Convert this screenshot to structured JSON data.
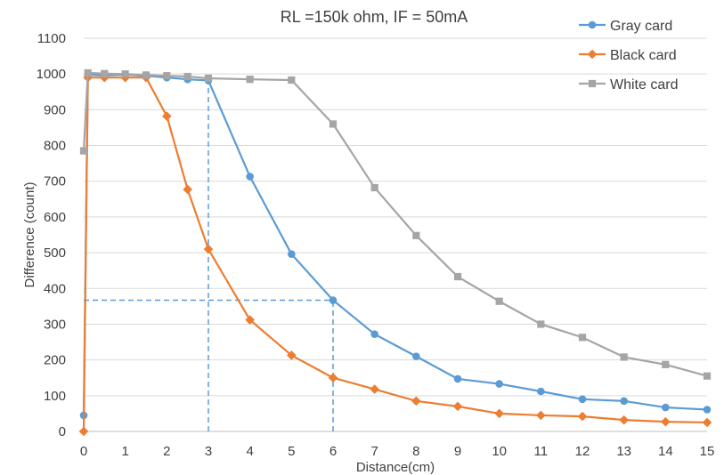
{
  "chart_data": {
    "type": "line",
    "title": "RL =150k ohm, IF = 50mA",
    "xlabel": "Distance(cm)",
    "ylabel": "Difference (count)",
    "xlim": [
      0,
      15
    ],
    "ylim": [
      0,
      1100
    ],
    "x_ticks": [
      0,
      1,
      2,
      3,
      4,
      5,
      6,
      7,
      8,
      9,
      10,
      11,
      12,
      13,
      14,
      15
    ],
    "y_ticks": [
      0,
      100,
      200,
      300,
      400,
      500,
      600,
      700,
      800,
      900,
      1000,
      1100
    ],
    "grid": "horizontal",
    "legend_position": "top-right",
    "series": [
      {
        "name": "Gray card",
        "color": "#5B9BD5",
        "marker": "circle",
        "x": [
          0,
          0.1,
          0.5,
          1,
          1.5,
          2,
          2.5,
          3,
          4,
          5,
          6,
          7,
          8,
          9,
          10,
          11,
          12,
          13,
          14,
          15
        ],
        "y": [
          45,
          998,
          996,
          998,
          995,
          990,
          985,
          982,
          713,
          496,
          367,
          272,
          210,
          147,
          133,
          112,
          90,
          85,
          67,
          61
        ]
      },
      {
        "name": "Black card",
        "color": "#ED7D31",
        "marker": "diamond",
        "x": [
          0,
          0.1,
          0.5,
          1,
          1.5,
          2,
          2.5,
          3,
          4,
          5,
          6,
          7,
          8,
          9,
          10,
          11,
          12,
          13,
          14,
          15
        ],
        "y": [
          0,
          990,
          990,
          990,
          990,
          882,
          677,
          510,
          312,
          213,
          150,
          118,
          85,
          70,
          50,
          45,
          42,
          32,
          27,
          25
        ]
      },
      {
        "name": "White card",
        "color": "#A5A5A5",
        "marker": "square",
        "x": [
          0,
          0.1,
          0.5,
          1,
          1.5,
          2,
          2.5,
          3,
          4,
          5,
          6,
          7,
          8,
          9,
          10,
          11,
          12,
          13,
          14,
          15
        ],
        "y": [
          785,
          1003,
          1001,
          1000,
          997,
          995,
          993,
          988,
          985,
          983,
          860,
          682,
          548,
          433,
          364,
          300,
          263,
          208,
          187,
          155
        ]
      }
    ],
    "reference_lines": [
      {
        "color": "#5B9BD5",
        "style": "dashed",
        "points": [
          [
            3,
            0
          ],
          [
            3,
            982
          ]
        ]
      },
      {
        "color": "#5B9BD5",
        "style": "dashed",
        "points": [
          [
            6,
            0
          ],
          [
            6,
            367
          ]
        ]
      },
      {
        "color": "#5B9BD5",
        "style": "dashed",
        "points": [
          [
            0,
            367
          ],
          [
            6,
            367
          ]
        ]
      }
    ]
  },
  "style": {
    "axis_color": "#BFBFBF",
    "grid_color": "#D9D9D9",
    "text_color": "#404040"
  }
}
